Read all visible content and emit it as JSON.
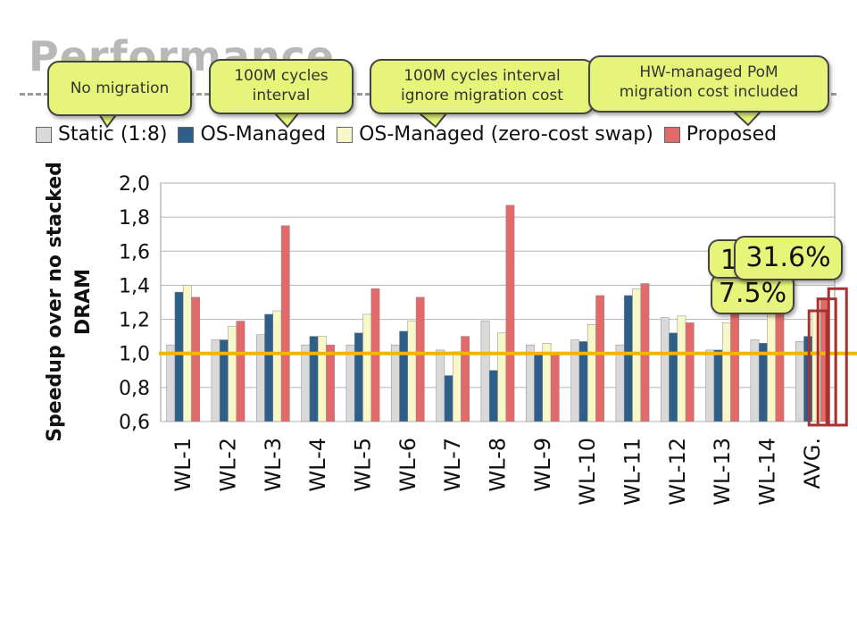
{
  "slide": {
    "title": "Performance"
  },
  "callouts": {
    "no_migration": "No migration",
    "interval_line1": "100M cycles",
    "interval_line2": "interval",
    "zero_cost_line1": "100M cycles interval",
    "zero_cost_line2": "ignore migration cost",
    "hw_line1": "HW-managed PoM",
    "hw_line2": "migration cost included"
  },
  "highlights": {
    "pct_a": "1",
    "pct_b": "7.5%",
    "pct_c": "31.6%"
  },
  "colors": {
    "static": "#d9d9d9",
    "os_managed": "#2e5f8a",
    "zero_cost": "#f7f7c7",
    "proposed": "#e26a6a",
    "baseline": "#f5b400",
    "callout": "#e6f57a",
    "highlight_box": "#a83232"
  },
  "chart_data": {
    "type": "bar",
    "ylabel": "Speedup over no stacked DRAM",
    "ylabel_line1": "Speedup over no stacked",
    "ylabel_line2": "DRAM",
    "ylim": [
      0.6,
      2.0
    ],
    "yticks": [
      "0,6",
      "0,8",
      "1,0",
      "1,2",
      "1,4",
      "1,6",
      "1,8",
      "2,0"
    ],
    "baseline": 1.0,
    "grid": true,
    "legend_position": "top",
    "categories": [
      "WL-1",
      "WL-2",
      "WL-3",
      "WL-4",
      "WL-5",
      "WL-6",
      "WL-7",
      "WL-8",
      "WL-9",
      "WL-10",
      "WL-11",
      "WL-12",
      "WL-13",
      "WL-14",
      "AVG."
    ],
    "series": [
      {
        "name": "Static (1:8)",
        "values": [
          1.05,
          1.08,
          1.11,
          1.05,
          1.05,
          1.05,
          1.02,
          1.19,
          1.05,
          1.08,
          1.05,
          1.21,
          1.02,
          1.08,
          1.07
        ]
      },
      {
        "name": "OS-Managed",
        "values": [
          1.36,
          1.08,
          1.23,
          1.1,
          1.12,
          1.13,
          0.87,
          0.9,
          1.0,
          1.07,
          1.34,
          1.12,
          1.02,
          1.06,
          1.1
        ]
      },
      {
        "name": "OS-Managed (zero-cost swap)",
        "values": [
          1.4,
          1.16,
          1.25,
          1.1,
          1.23,
          1.19,
          1.01,
          1.12,
          1.06,
          1.17,
          1.38,
          1.22,
          1.18,
          1.26,
          1.25
        ]
      },
      {
        "name": "Proposed",
        "values": [
          1.33,
          1.19,
          1.75,
          1.05,
          1.38,
          1.33,
          1.1,
          1.87,
          1.0,
          1.34,
          1.41,
          1.18,
          1.3,
          1.3,
          1.32
        ]
      }
    ]
  }
}
